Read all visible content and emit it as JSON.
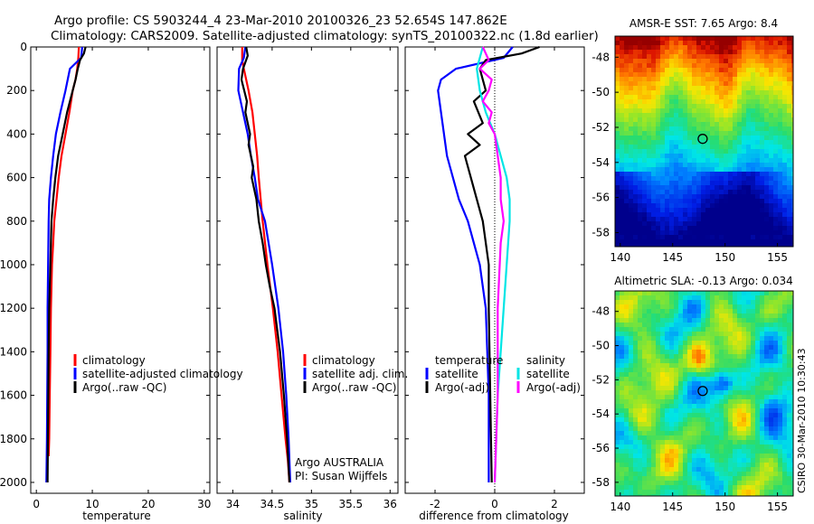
{
  "header": {
    "line1": "Argo profile: CS 5903244_4 23-Mar-2010 20100326_23 52.654S 147.862E",
    "line2": "Climatology: CARS2009. Satellite-adjusted climatology: synTS_20100322.nc (1.8d earlier)"
  },
  "side_label": "CSIRO 30-Mar-2010 10:30:43",
  "credit": {
    "line1": "Argo AUSTRALIA",
    "line2": "PI: Susan Wijffels"
  },
  "colors": {
    "climatology": "#ff0000",
    "satellite": "#0000ff",
    "argo": "#000000",
    "cyan": "#00e5e5",
    "magenta": "#ff00ff"
  },
  "chart_data": [
    {
      "type": "line",
      "id": "temperature",
      "xlabel": "temperature",
      "xlim": [
        -1,
        31
      ],
      "ylim": [
        0,
        2050
      ],
      "y_reversed": true,
      "xticks": [
        0,
        10,
        20,
        30
      ],
      "yticks": [
        0,
        200,
        400,
        600,
        800,
        1000,
        1200,
        1400,
        1600,
        1800,
        2000
      ],
      "legend": [
        "climatology",
        "satellite-adjusted climatology",
        "Argo(..raw -QC)"
      ],
      "series": [
        {
          "name": "climatology",
          "color": "#ff0000",
          "x": [
            7.6,
            7.5,
            7.3,
            7.0,
            6.5,
            5.9,
            5.2,
            4.5,
            4.0,
            3.6,
            3.2,
            3.0,
            2.8,
            2.6,
            2.5,
            2.4,
            2.3,
            2.2
          ],
          "y": [
            0,
            50,
            100,
            150,
            200,
            300,
            400,
            500,
            600,
            700,
            800,
            900,
            1000,
            1200,
            1400,
            1600,
            1800,
            1880
          ]
        },
        {
          "name": "satellite-adjusted climatology",
          "color": "#0000ff",
          "x": [
            8.2,
            8.0,
            6.0,
            5.2,
            4.3,
            3.5,
            3.0,
            2.6,
            2.3,
            2.2,
            2.1,
            2.0,
            2.0,
            1.9,
            1.8
          ],
          "y": [
            0,
            50,
            100,
            200,
            300,
            400,
            500,
            600,
            700,
            800,
            1000,
            1200,
            1400,
            1800,
            2000
          ]
        },
        {
          "name": "Argo(..raw -QC)",
          "color": "#000000",
          "x": [
            8.8,
            8.5,
            7.8,
            7.4,
            7.0,
            6.5,
            6.0,
            5.5,
            4.7,
            3.9,
            3.4,
            3.0,
            2.7,
            2.5,
            2.3,
            2.2,
            2.1,
            2.0
          ],
          "y": [
            0,
            30,
            60,
            100,
            150,
            200,
            250,
            300,
            400,
            500,
            600,
            700,
            800,
            1000,
            1200,
            1400,
            1700,
            2000
          ]
        }
      ]
    },
    {
      "type": "line",
      "id": "salinity",
      "xlabel": "salinity",
      "xlim": [
        33.8,
        36.1
      ],
      "ylim": [
        0,
        2050
      ],
      "y_reversed": true,
      "xticks": [
        34,
        34.5,
        35,
        35.5,
        36
      ],
      "legend": [
        "climatology",
        "satellite adj. clim.",
        "Argo(..raw -QC)"
      ],
      "series": [
        {
          "name": "climatology",
          "color": "#ff0000",
          "x": [
            34.12,
            34.12,
            34.14,
            34.2,
            34.25,
            34.28,
            34.31,
            34.33,
            34.38,
            34.44,
            34.51,
            34.57,
            34.62,
            34.67,
            34.7,
            34.72
          ],
          "y": [
            0,
            60,
            100,
            200,
            300,
            400,
            500,
            600,
            800,
            1000,
            1200,
            1400,
            1600,
            1800,
            1900,
            2000
          ]
        },
        {
          "name": "satellite adj. clim.",
          "color": "#0000ff",
          "x": [
            34.16,
            34.14,
            34.08,
            34.07,
            34.13,
            34.19,
            34.23,
            34.28,
            34.32,
            34.41,
            34.5,
            34.58,
            34.64,
            34.68,
            34.71,
            34.73
          ],
          "y": [
            0,
            50,
            100,
            200,
            300,
            400,
            500,
            600,
            700,
            800,
            1000,
            1200,
            1400,
            1600,
            1800,
            2000
          ]
        },
        {
          "name": "Argo(..raw -QC)",
          "color": "#000000",
          "x": [
            34.17,
            34.19,
            34.13,
            34.11,
            34.18,
            34.16,
            34.22,
            34.2,
            34.26,
            34.24,
            34.3,
            34.33,
            34.38,
            34.42,
            34.47,
            34.53,
            34.6,
            34.65,
            34.69,
            34.72
          ],
          "y": [
            0,
            40,
            100,
            150,
            250,
            300,
            400,
            450,
            550,
            600,
            700,
            800,
            900,
            1000,
            1100,
            1200,
            1400,
            1600,
            1800,
            2000
          ]
        }
      ]
    },
    {
      "type": "line",
      "id": "difference",
      "xlabel": "difference from climatology",
      "xlim": [
        -3,
        3
      ],
      "ylim": [
        0,
        2050
      ],
      "y_reversed": true,
      "xticks": [
        -2,
        0,
        2
      ],
      "zero_line": true,
      "legend_temperature_title": "temperature",
      "legend_salinity_title": "salinity",
      "legend": [
        "satellite",
        "Argo(-adj)",
        "satellite",
        "Argo(-adj)"
      ],
      "series": [
        {
          "name": "temperature satellite",
          "color": "#0000ff",
          "x": [
            0.6,
            0.3,
            -1.3,
            -1.8,
            -1.9,
            -1.8,
            -1.6,
            -1.2,
            -0.9,
            -0.7,
            -0.5,
            -0.4,
            -0.3,
            -0.2,
            -0.2
          ],
          "y": [
            0,
            50,
            100,
            150,
            200,
            300,
            500,
            700,
            800,
            900,
            1000,
            1100,
            1200,
            1600,
            2000
          ]
        },
        {
          "name": "temperature Argo(-adj)",
          "color": "#000000",
          "x": [
            1.5,
            0.9,
            -0.3,
            -0.5,
            -0.3,
            -0.7,
            -0.4,
            -0.9,
            -0.5,
            -1.0,
            -0.8,
            -0.6,
            -0.4,
            -0.3,
            -0.2,
            -0.2,
            -0.1
          ],
          "y": [
            0,
            30,
            60,
            100,
            200,
            250,
            350,
            400,
            450,
            500,
            600,
            700,
            800,
            900,
            1000,
            1200,
            2000
          ]
        },
        {
          "name": "salinity satellite",
          "color": "#00e5e5",
          "x": [
            -0.4,
            -0.5,
            -0.6,
            -0.5,
            -0.3,
            0.0,
            0.2,
            0.4,
            0.5,
            0.5,
            0.4,
            0.3,
            0.1,
            0.0
          ],
          "y": [
            0,
            50,
            100,
            200,
            300,
            400,
            500,
            600,
            700,
            800,
            1000,
            1200,
            1600,
            2000
          ]
        },
        {
          "name": "salinity Argo(-adj)",
          "color": "#ff00ff",
          "x": [
            -0.4,
            -0.2,
            -0.5,
            -0.1,
            -0.2,
            -0.4,
            -0.1,
            -0.2,
            0.0,
            0.1,
            0.2,
            0.2,
            0.3,
            0.2,
            0.1,
            0.1,
            0.0
          ],
          "y": [
            0,
            60,
            100,
            150,
            200,
            250,
            300,
            350,
            400,
            500,
            600,
            700,
            800,
            900,
            1200,
            1600,
            2000
          ]
        }
      ]
    },
    {
      "type": "heatmap",
      "id": "sst_map",
      "title": "AMSR-E SST: 7.65 Argo: 8.4",
      "xlim": [
        139.5,
        156.5
      ],
      "ylim": [
        -58.8,
        -46.8
      ],
      "xticks": [
        140,
        145,
        150,
        155
      ],
      "yticks": [
        -48,
        -50,
        -52,
        -54,
        -56,
        -58
      ],
      "marker": {
        "lon": 147.862,
        "lat": -52.654
      }
    },
    {
      "type": "heatmap",
      "id": "sla_map",
      "title": "Altimetric SLA: -0.13 Argo: 0.034",
      "xlim": [
        139.5,
        156.5
      ],
      "ylim": [
        -58.8,
        -46.8
      ],
      "xticks": [
        140,
        145,
        150,
        155
      ],
      "yticks": [
        -48,
        -50,
        -52,
        -54,
        -56,
        -58
      ],
      "marker": {
        "lon": 147.862,
        "lat": -52.654
      }
    }
  ]
}
